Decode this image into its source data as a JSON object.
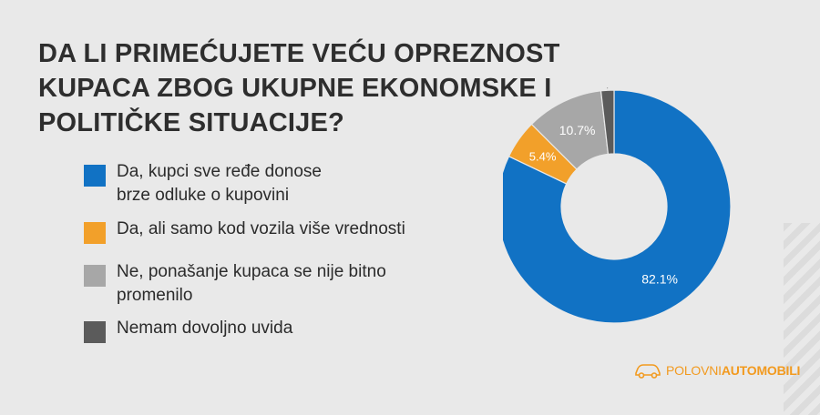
{
  "title_lines": [
    "DA LI PRIMEĆUJETE VEĆU OPREZNOST",
    "KUPACA ZBOG UKUPNE EKONOMSKE I",
    "POLITIČKE SITUACIJE?"
  ],
  "legend": [
    {
      "lines": [
        "Da, kupci sve ređe donose",
        "brze odluke o kupovini"
      ],
      "color": "#1172c4"
    },
    {
      "lines": [
        "Da, ali samo kod vozila više vrednosti"
      ],
      "color": "#f2a02a"
    },
    {
      "lines": [
        "Ne, ponašanje kupaca se nije bitno",
        "promenilo"
      ],
      "color": "#a7a7a7"
    },
    {
      "lines": [
        "Nemam dovoljno uvida"
      ],
      "color": "#5b5b5b"
    }
  ],
  "chart_data": {
    "type": "pie",
    "style": "donut",
    "title": "DA LI PRIMEĆUJETE VEĆU OPREZNOST KUPACA ZBOG UKUPNE EKONOMSKE I POLITIČKE SITUACIJE?",
    "categories": [
      "Da, kupci sve ređe donose brze odluke o kupovini",
      "Da, ali samo kod vozila više vrednosti",
      "Ne, ponašanje kupaca se nije bitno promenilo",
      "Nemam dovoljno uvida"
    ],
    "values": [
      82.1,
      5.4,
      10.7,
      1.8
    ],
    "labels": [
      "82.1%",
      "5.4%",
      "10.7%",
      "1.8%"
    ],
    "colors": [
      "#1172c4",
      "#f2a02a",
      "#a7a7a7",
      "#5b5b5b"
    ],
    "start": "top",
    "direction": "clockwise",
    "legend_position": "left"
  },
  "logo": {
    "part1": "POLOVNI",
    "part2": "AUTOMOBILI",
    "icon": "car-icon"
  }
}
